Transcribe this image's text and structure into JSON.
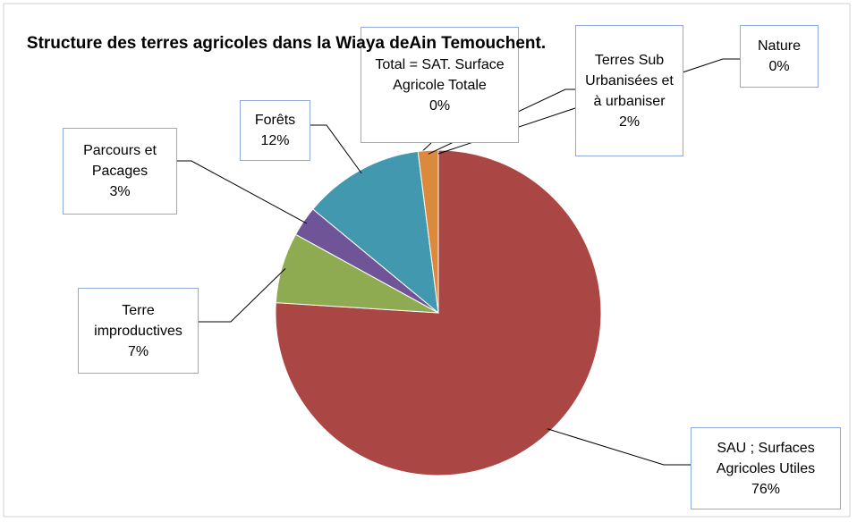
{
  "chart_data": {
    "type": "pie",
    "title": "Structure des terres agricoles dans la Wiaya deAin Temouchent.",
    "categories": [
      "SAU ; Surfaces Agricoles Utiles",
      "Terre improductives",
      "Parcours et Pacages",
      "Forêts",
      "Total = SAT. Surface Agricole Totale",
      "Terres Sub Urbanisées et à urbaniser",
      "Nature"
    ],
    "values": [
      76,
      7,
      3,
      12,
      0,
      2,
      0
    ],
    "value_labels": [
      "76%",
      "7%",
      "3%",
      "12%",
      "0%",
      "2%",
      "0%"
    ],
    "colors": [
      "#aa4643",
      "#8eab52",
      "#6f5597",
      "#4198af",
      "#4f81bd",
      "#db8a3d",
      "#7f7f7f"
    ]
  }
}
